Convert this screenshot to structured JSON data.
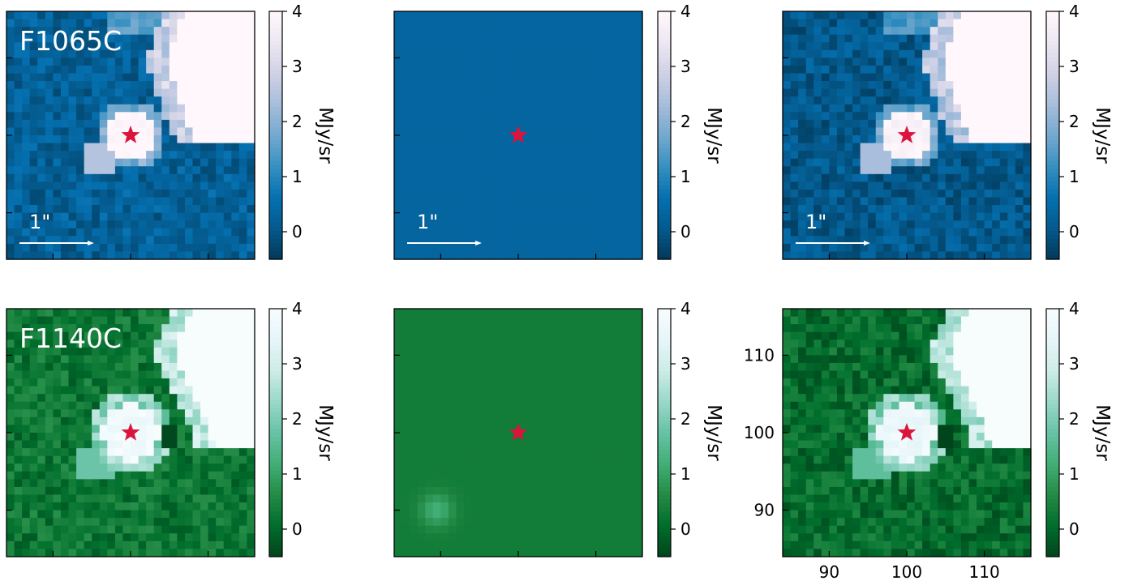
{
  "chart_data": {
    "type": "heatmap",
    "colorbar_label": "MJy/sr",
    "colorbar_range": [
      -0.5,
      4
    ],
    "colorbar_ticks": [
      "0",
      "1",
      "2",
      "3",
      "4"
    ],
    "scale_bar_label": "1\"",
    "axis_range": [
      84,
      116
    ],
    "x_ticks": [
      "90",
      "100",
      "110"
    ],
    "y_ticks": [
      "90",
      "100",
      "110"
    ],
    "star_position": [
      100,
      100
    ],
    "star_color": "#dc143c",
    "rows": [
      {
        "filter": "F1065C",
        "colormap": "PuBu",
        "colormap_stops": [
          "#023858",
          "#045a8d",
          "#0570b0",
          "#3690c0",
          "#74a9cf",
          "#a6bddb",
          "#d0d1e6",
          "#ece7f2",
          "#fff7fb"
        ],
        "panels": [
          {
            "label": "F1065C",
            "kind": "data",
            "scale_bar": true
          },
          {
            "label": "",
            "kind": "model",
            "scale_bar": true
          },
          {
            "label": "",
            "kind": "residual",
            "scale_bar": true
          }
        ]
      },
      {
        "filter": "F1140C",
        "colormap": "BuGn",
        "colormap_stops": [
          "#00441b",
          "#006d2c",
          "#238b45",
          "#41ae76",
          "#66c2a4",
          "#99d8c9",
          "#ccece6",
          "#e5f5f9",
          "#f7fcfd"
        ],
        "panels": [
          {
            "label": "F1140C",
            "kind": "data",
            "scale_bar": false
          },
          {
            "label": "",
            "kind": "model",
            "scale_bar": false
          },
          {
            "label": "",
            "kind": "residual",
            "scale_bar": false
          }
        ]
      }
    ]
  }
}
